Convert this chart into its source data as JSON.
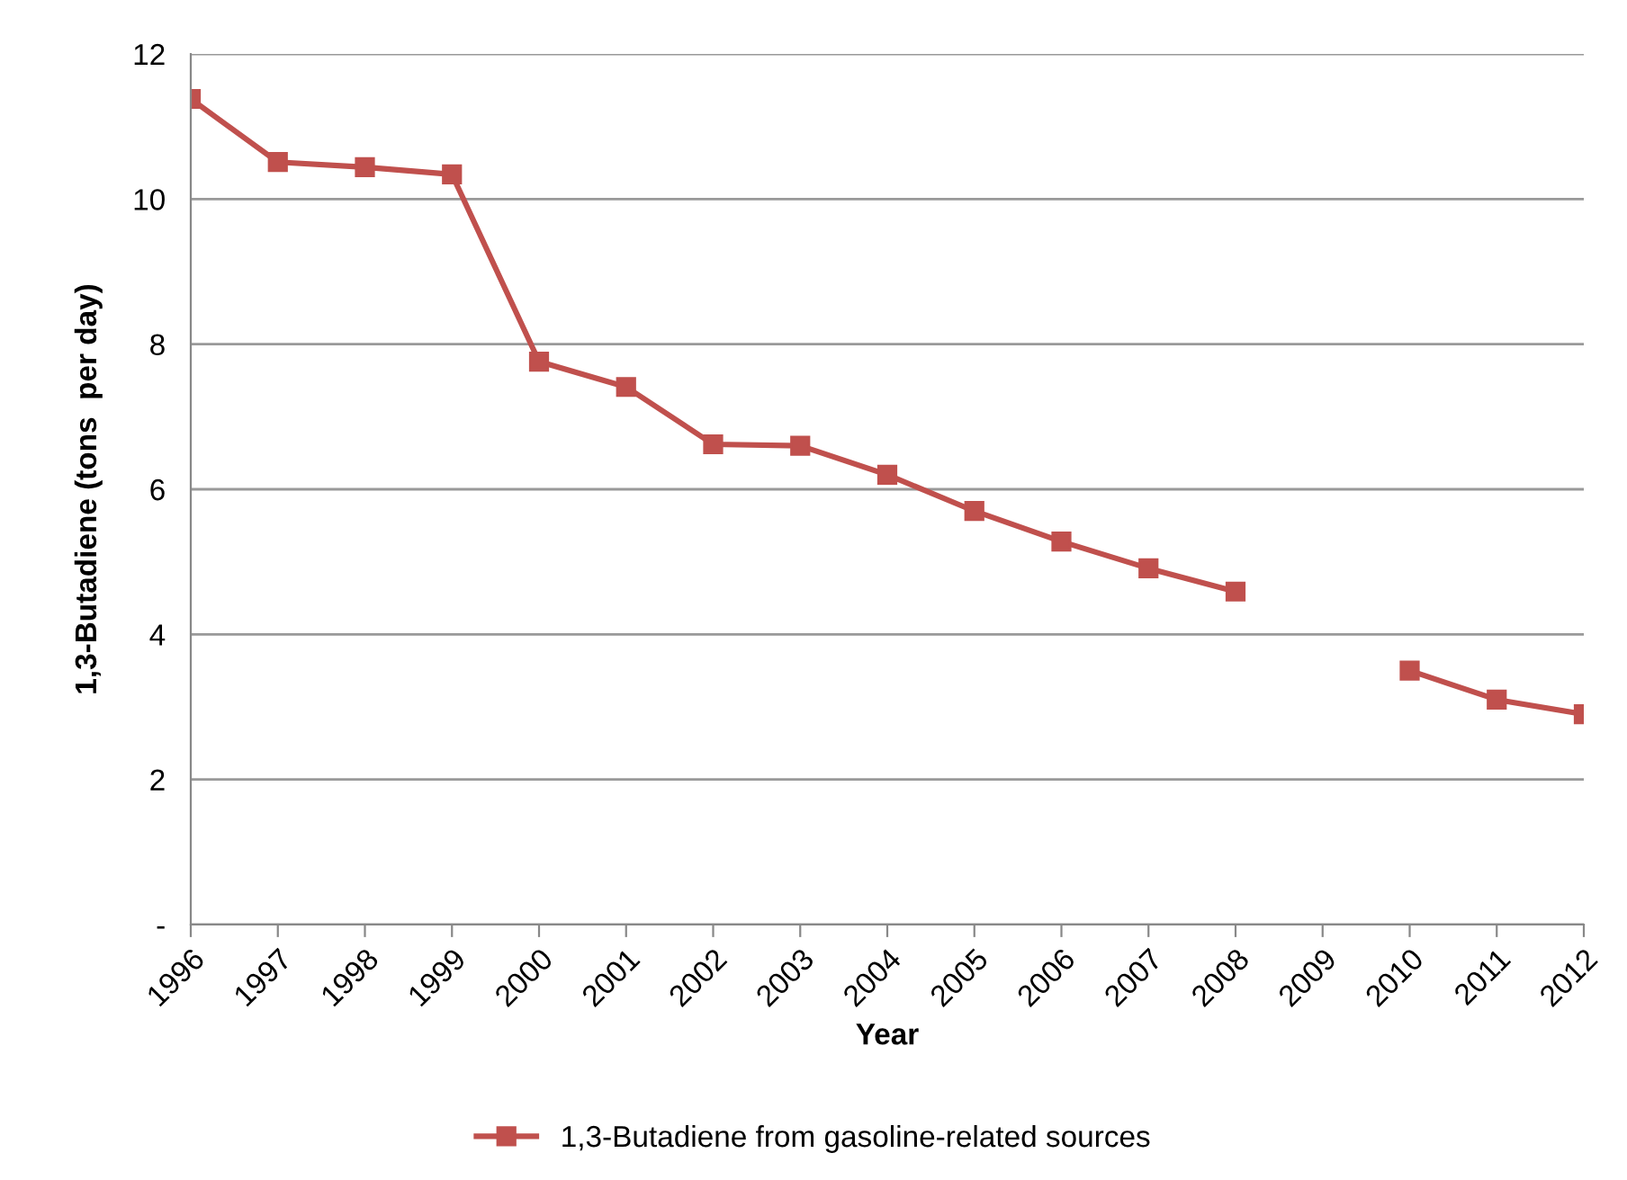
{
  "chart_data": {
    "type": "line",
    "xlabel": "Year",
    "ylabel": "1,3-Butadiene (tons  per day)",
    "categories": [
      "1996",
      "1997",
      "1998",
      "1999",
      "2000",
      "2001",
      "2002",
      "2003",
      "2004",
      "2005",
      "2006",
      "2007",
      "2008",
      "2009",
      "2010",
      "2011",
      "2012"
    ],
    "series": [
      {
        "name": "1,3-Butadiene from gasoline-related sources",
        "color": "#c0504d",
        "values": [
          11.38,
          10.51,
          10.44,
          10.34,
          7.76,
          7.41,
          6.62,
          6.6,
          6.2,
          5.7,
          5.28,
          4.91,
          4.59,
          null,
          3.5,
          3.1,
          2.9
        ]
      }
    ],
    "ylim": [
      0,
      12
    ],
    "yticks": [
      {
        "value": 0,
        "label": "-"
      },
      2,
      4,
      6,
      8,
      10,
      12
    ],
    "grid": "y",
    "legend": "bottom",
    "marker": "square",
    "line_style": "solid"
  }
}
